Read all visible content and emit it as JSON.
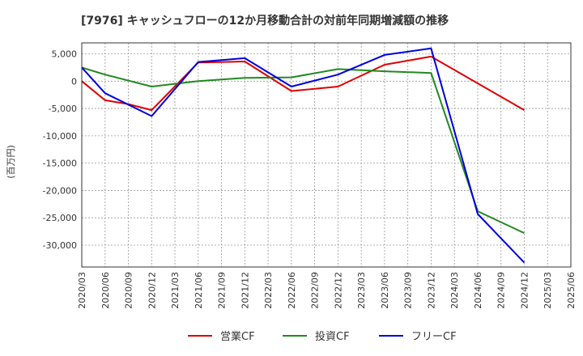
{
  "chart_data": {
    "type": "line",
    "title": "[7976]  キャッシュフローの12か月移動合計の対前年同期増減額の推移",
    "ylabel": "(百万円)",
    "xlabel": "",
    "ylim": [
      -34000,
      7000
    ],
    "yticks": [
      5000,
      0,
      -5000,
      -10000,
      -15000,
      -20000,
      -25000,
      -30000
    ],
    "ytick_labels": [
      "5,000",
      "0",
      "-5,000",
      "-10,000",
      "-15,000",
      "-20,000",
      "-25,000",
      "-30,000"
    ],
    "categories": [
      "2020/03",
      "2020/06",
      "2020/09",
      "2020/12",
      "2021/03",
      "2021/06",
      "2021/09",
      "2021/12",
      "2022/03",
      "2022/06",
      "2022/09",
      "2022/12",
      "2023/03",
      "2023/06",
      "2023/09",
      "2023/12",
      "2024/03",
      "2024/06",
      "2024/09",
      "2024/12",
      "2025/03",
      "2025/06"
    ],
    "series": [
      {
        "name": "営業CF",
        "color": "#dd0000",
        "values": [
          0,
          -3500,
          -4200,
          -5300,
          null,
          3400,
          null,
          3600,
          null,
          -1800,
          null,
          -1000,
          null,
          3000,
          null,
          4500,
          null,
          null,
          null,
          -5300,
          null,
          null
        ]
      },
      {
        "name": "投資CF",
        "color": "#228822",
        "values": [
          2500,
          1200,
          null,
          -1000,
          null,
          0,
          null,
          600,
          null,
          700,
          null,
          2200,
          null,
          1800,
          null,
          1500,
          null,
          -23800,
          null,
          -27800,
          null,
          null
        ]
      },
      {
        "name": "フリーCF",
        "color": "#0000dd",
        "values": [
          2500,
          -2200,
          null,
          -6400,
          null,
          3500,
          null,
          4200,
          null,
          -1000,
          null,
          1200,
          null,
          4800,
          null,
          6000,
          null,
          -24300,
          null,
          -33200,
          null,
          null
        ]
      }
    ]
  }
}
